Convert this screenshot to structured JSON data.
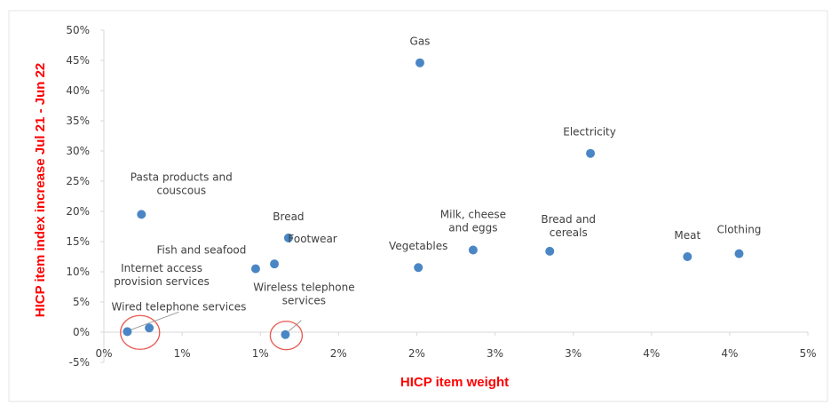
{
  "colors": {
    "axis_title": "#ff0000",
    "marker": "#4a86c5",
    "highlight_circle": "#e8584f",
    "tick_text": "#404040",
    "axis_line": "#d9d9d9"
  },
  "chart_data": {
    "type": "scatter",
    "title": "",
    "xlabel": "HICP item weight",
    "ylabel": "HICP item index increase Jul 21 - Jun 22",
    "xlim": [
      0,
      4.5
    ],
    "ylim": [
      -5,
      50
    ],
    "x_tick_labels": [
      "0%",
      "1%",
      "1%",
      "2%",
      "2%",
      "3%",
      "3%",
      "4%",
      "4%",
      "5%"
    ],
    "y_tick_labels": [
      "-5%",
      "0%",
      "5%",
      "10%",
      "15%",
      "20%",
      "25%",
      "30%",
      "35%",
      "40%",
      "45%",
      "50%"
    ],
    "grid": false,
    "legend": "none",
    "points": [
      {
        "label": "Gas",
        "x": 2.02,
        "y": 44.6
      },
      {
        "label": "Electricity",
        "x": 3.11,
        "y": 29.6
      },
      {
        "label": "Pasta products and couscous",
        "x": 0.24,
        "y": 19.5
      },
      {
        "label": "Bread",
        "x": 1.18,
        "y": 15.6
      },
      {
        "label": "Milk, cheese and eggs",
        "x": 2.36,
        "y": 13.6
      },
      {
        "label": "Bread and cereals",
        "x": 2.85,
        "y": 13.4
      },
      {
        "label": "Meat",
        "x": 3.73,
        "y": 12.5
      },
      {
        "label": "Clothing",
        "x": 4.06,
        "y": 13.0
      },
      {
        "label": "Vegetables",
        "x": 2.01,
        "y": 10.7
      },
      {
        "label": "Footwear",
        "x": 1.09,
        "y": 11.3
      },
      {
        "label": "Fish and seafood",
        "x": 0.97,
        "y": 10.5
      },
      {
        "label": "Internet access provision services",
        "x": 0.29,
        "y": 0.7
      },
      {
        "label": "Wired telephone services",
        "x": 0.15,
        "y": 0.1
      },
      {
        "label": "Wireless telephone services",
        "x": 1.16,
        "y": -0.4
      }
    ],
    "highlighted": [
      "Wired telephone services",
      "Internet access provision services",
      "Wireless telephone services"
    ]
  }
}
